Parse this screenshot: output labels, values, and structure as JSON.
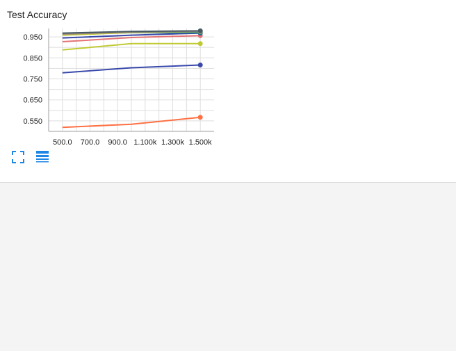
{
  "card": {
    "title": "Test Accuracy"
  },
  "icons": {
    "fullscreen": "fullscreen-icon",
    "legend": "legend-list-icon",
    "accent": "#1e88e5"
  },
  "chart_data": {
    "type": "line",
    "title": "Test Accuracy",
    "xlabel": "",
    "ylabel": "",
    "x": [
      500,
      1000,
      1500
    ],
    "xlim": [
      400,
      1600
    ],
    "ylim": [
      0.5,
      0.99
    ],
    "xticks": [
      500,
      700,
      900,
      1100,
      1300,
      1500
    ],
    "xtick_labels": [
      "500.0",
      "700.0",
      "900.0",
      "1.100k",
      "1.300k",
      "1.500k"
    ],
    "yticks": [
      0.55,
      0.65,
      0.75,
      0.85,
      0.95
    ],
    "ytick_labels": [
      "0.550",
      "0.650",
      "0.750",
      "0.850",
      "0.950"
    ],
    "grid": true,
    "series": [
      {
        "color": "#455a64",
        "values": [
          0.968,
          0.976,
          0.979
        ]
      },
      {
        "color": "#a1887f",
        "values": [
          0.963,
          0.973,
          0.976
        ]
      },
      {
        "color": "#c0ca33",
        "values": [
          0.958,
          0.971,
          0.975
        ]
      },
      {
        "color": "#00897b",
        "values": [
          0.964,
          0.97,
          0.971
        ]
      },
      {
        "color": "#3949ab",
        "values": [
          0.945,
          0.958,
          0.968
        ]
      },
      {
        "color": "#e57373",
        "values": [
          0.927,
          0.947,
          0.956
        ]
      },
      {
        "color": "#c0ca33",
        "values": [
          0.888,
          0.918,
          0.918
        ]
      },
      {
        "color": "#3949ab",
        "values": [
          0.779,
          0.803,
          0.816
        ]
      },
      {
        "color": "#ff7043",
        "values": [
          0.519,
          0.534,
          0.567
        ]
      }
    ]
  }
}
